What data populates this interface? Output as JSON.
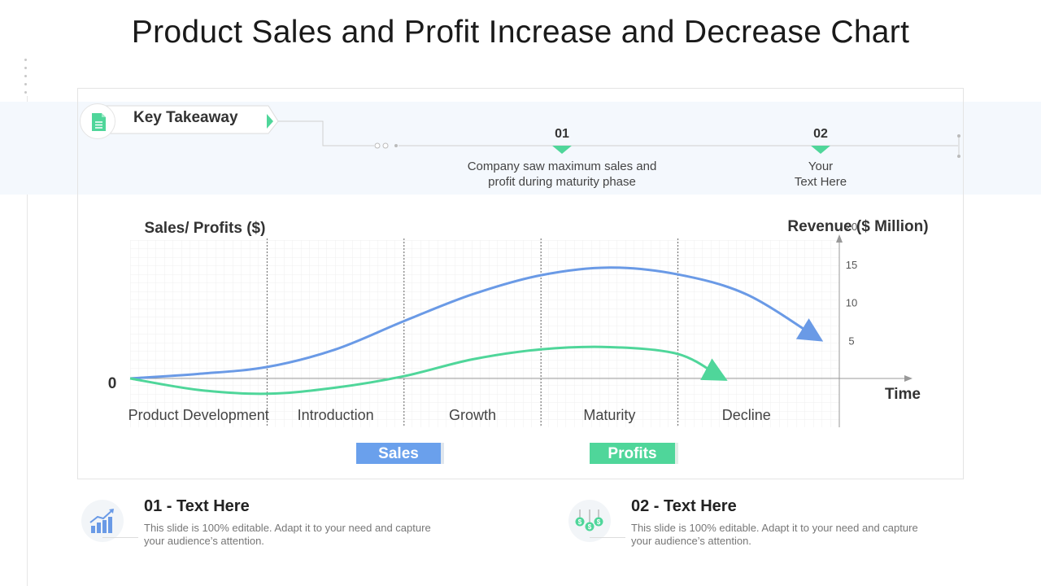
{
  "title": "Product Sales and Profit Increase and Decrease Chart",
  "key_takeaway": {
    "label": "Key Takeaway",
    "items": [
      {
        "number": "01",
        "text_line1": "Company saw maximum sales and",
        "text_line2": "profit during maturity phase"
      },
      {
        "number": "02",
        "text_line1": "Your",
        "text_line2": "Text Here"
      }
    ]
  },
  "legend": {
    "sales": "Sales",
    "profits": "Profits"
  },
  "footer": [
    {
      "title": "01 - Text Here",
      "line1": "This slide is 100% editable. Adapt it to your need and capture",
      "line2": "your audience’s attention."
    },
    {
      "title": "02 - Text Here",
      "line1": "This slide is 100% editable. Adapt it to your need and capture",
      "line2": "your audience’s attention."
    }
  ],
  "colors": {
    "sales": "#6a9ae6",
    "profits": "#4fd69a",
    "accent": "#4fd69a"
  },
  "chart_data": {
    "type": "line",
    "ylabel_left": "Sales/ Profits ($)",
    "ylabel_right": "Revenue ($ Million)",
    "xlabel": "Time",
    "origin_label": "0",
    "y_ticks": [
      5,
      10,
      15,
      20
    ],
    "ylim": [
      0,
      23
    ],
    "categories": [
      "Product Development",
      "Introduction",
      "Growth",
      "Maturity",
      "Decline"
    ],
    "series": [
      {
        "name": "Sales",
        "x": [
          0,
          0.5,
          1,
          1.5,
          2,
          2.5,
          3,
          3.5,
          4,
          4.5,
          5
        ],
        "values": [
          0,
          0.6,
          1.5,
          3.8,
          7.5,
          11,
          13.5,
          14.5,
          13.6,
          11,
          5.5
        ]
      },
      {
        "name": "Profits",
        "x": [
          0,
          0.5,
          1,
          1.5,
          2,
          2.5,
          3,
          3.5,
          4,
          4.3
        ],
        "values": [
          0,
          -1.5,
          -2,
          -1.2,
          0.3,
          2.5,
          3.8,
          4.1,
          3.2,
          0.3
        ]
      }
    ],
    "grid": true
  }
}
